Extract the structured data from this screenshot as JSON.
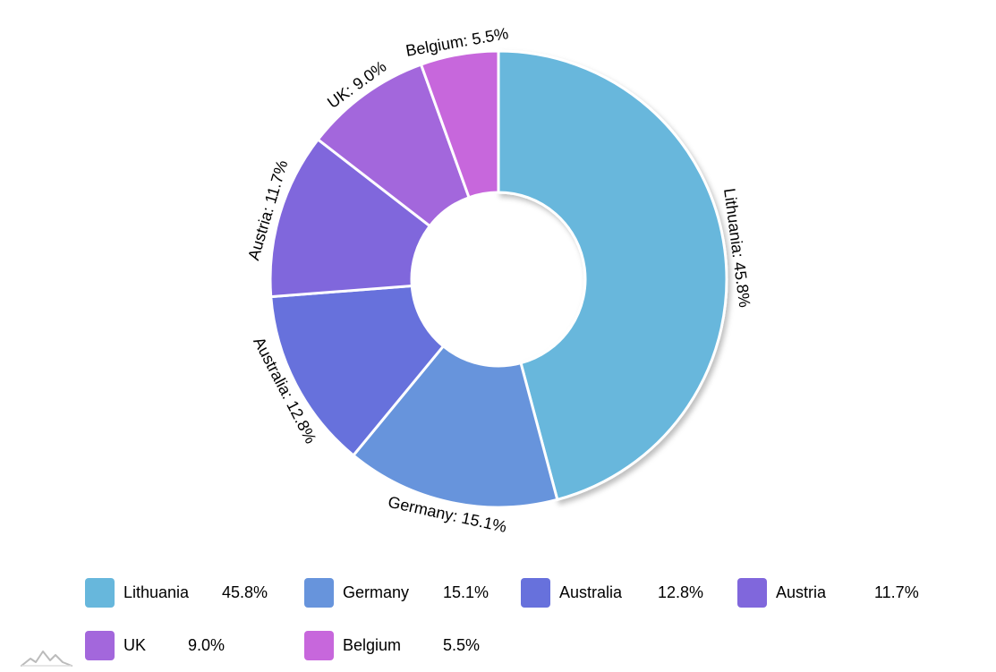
{
  "chart_data": {
    "type": "pie",
    "donut": true,
    "categories": [
      "Lithuania",
      "Germany",
      "Australia",
      "Austria",
      "UK",
      "Belgium"
    ],
    "values": [
      45.8,
      15.1,
      12.8,
      11.7,
      9.0,
      5.5
    ],
    "value_labels": [
      "45.8%",
      "15.1%",
      "12.8%",
      "11.7%",
      "9.0%",
      "5.5%"
    ],
    "slice_labels": [
      "Lithuania: 45.8%",
      "Germany: 15.1%",
      "Australia: 12.8%",
      "Austria: 11.7%",
      "UK: 9.0%",
      "Belgium: 5.5%"
    ],
    "colors": [
      "#67b7dc",
      "#6794dc",
      "#6771dc",
      "#8067dc",
      "#a367dc",
      "#c767dc"
    ],
    "legend_position": "bottom"
  },
  "logo": {
    "icon": "amcharts-logo-icon"
  }
}
